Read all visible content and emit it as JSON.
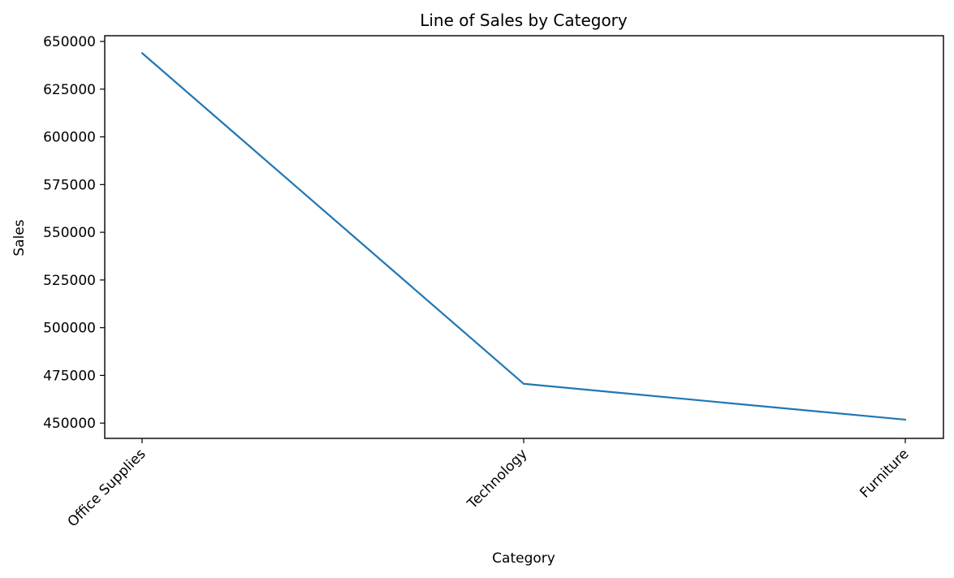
{
  "chart_data": {
    "type": "line",
    "title": "Line of Sales by Category",
    "xlabel": "Category",
    "ylabel": "Sales",
    "categories": [
      "Office Supplies",
      "Technology",
      "Furniture"
    ],
    "series": [
      {
        "values": [
          643900,
          470600,
          451800
        ]
      }
    ],
    "ylim": [
      442000,
      653000
    ],
    "yticks": [
      450000,
      475000,
      500000,
      525000,
      550000,
      575000,
      600000,
      625000,
      650000
    ],
    "grid": false,
    "line_color": "#1f77b4"
  }
}
